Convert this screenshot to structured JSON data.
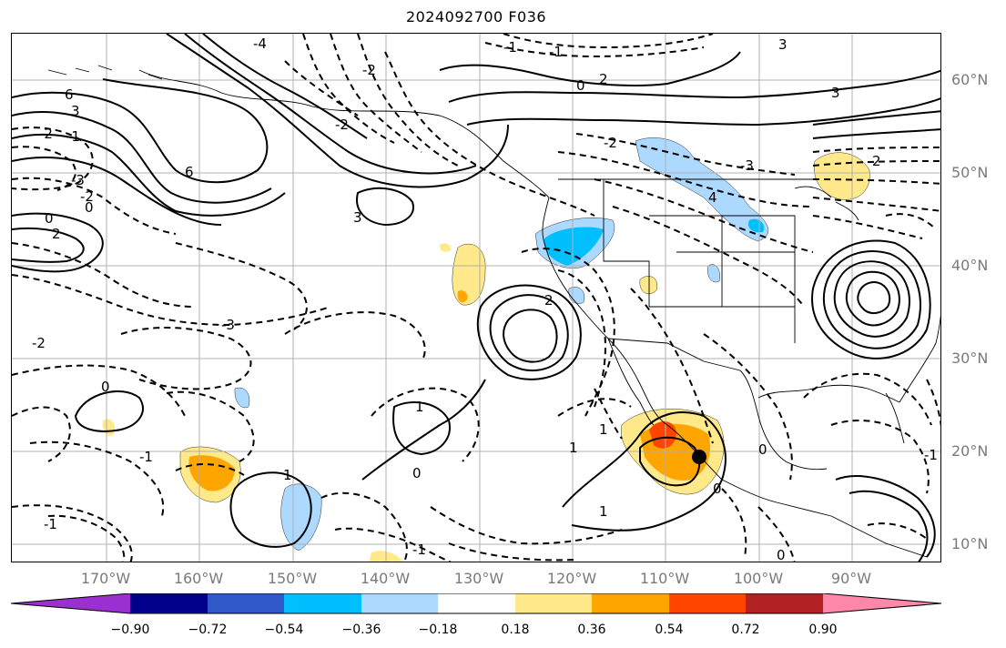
{
  "title": "2024092700 F036",
  "lat_labels": [
    "60°N",
    "50°N",
    "40°N",
    "30°N",
    "20°N",
    "10°N"
  ],
  "lon_labels": [
    "170°W",
    "160°W",
    "150°W",
    "140°W",
    "130°W",
    "120°W",
    "110°W",
    "100°W",
    "90°W"
  ],
  "colorbar": {
    "ticks": [
      "−0.90",
      "−0.72",
      "−0.54",
      "−0.36",
      "−0.18",
      "0.18",
      "0.36",
      "0.54",
      "0.72",
      "0.90"
    ],
    "colors": [
      "#9b30d0",
      "#00008b",
      "#3158c9",
      "#00bfff",
      "#add8ff",
      "#ffffff",
      "#ffe98a",
      "#ffa500",
      "#ff4500",
      "#b22222",
      "#ff88aa"
    ]
  },
  "contour_labels": [
    "6",
    "6",
    "3",
    "0",
    "2",
    "-1",
    "-2",
    "3",
    "-3",
    "-2",
    "0",
    "1",
    "-1",
    "0",
    "2",
    "-2",
    "-1",
    "3",
    "0",
    "-2",
    "-3",
    "1",
    "0",
    "-1",
    "1",
    "2",
    "-4",
    "4",
    "1",
    "0",
    "-1",
    "0",
    "1",
    "-1",
    "-2",
    "3",
    "-3",
    "2",
    "-2",
    "0",
    "-1"
  ]
}
